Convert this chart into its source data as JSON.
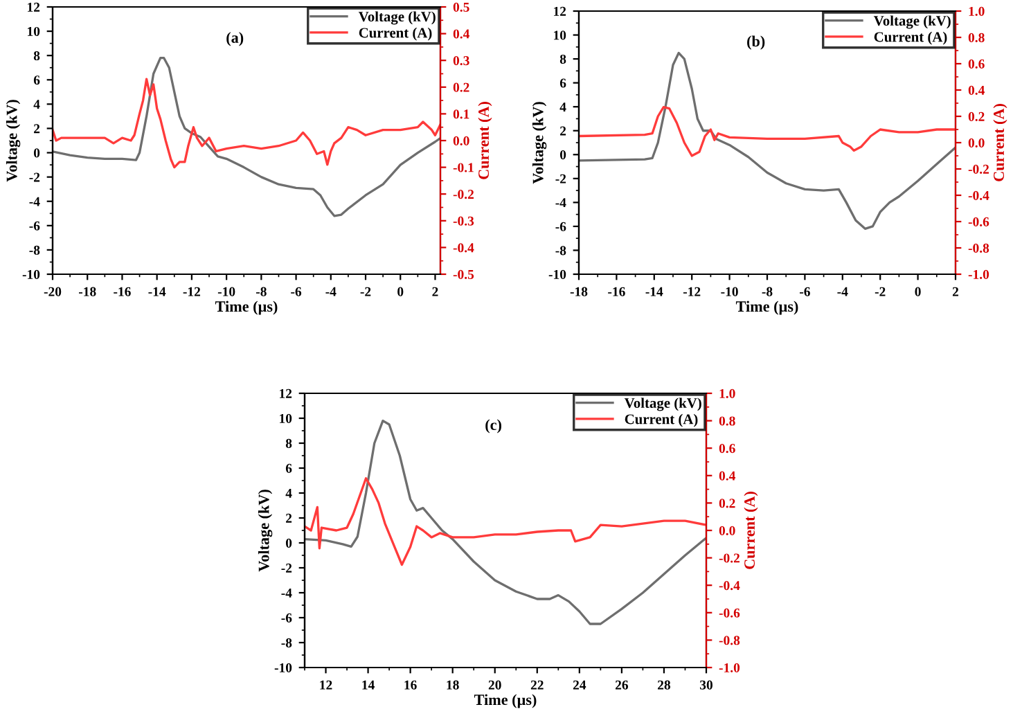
{
  "chart_data": [
    {
      "type": "line",
      "annotations": [
        "(a)"
      ],
      "xlabel": "Time (µs)",
      "ylabel": "Voltage (kV)",
      "y2label": "Current (A)",
      "legend": "top right",
      "grid": false,
      "xlim": [
        -20,
        2.3
      ],
      "xticks": [
        -20,
        -18,
        -16,
        -14,
        -12,
        -10,
        -8,
        -6,
        -4,
        -2,
        0,
        2
      ],
      "ylim": [
        -10,
        12
      ],
      "yticks": [
        -10,
        -8,
        -6,
        -4,
        -2,
        0,
        2,
        4,
        6,
        8,
        10,
        12
      ],
      "y2lim": [
        -0.5,
        0.5
      ],
      "y2ticks": [
        {
          "value": -0.5,
          "label": "-0.5"
        },
        {
          "value": -0.4,
          "label": "-0.4"
        },
        {
          "value": -0.3,
          "label": "-0.3"
        },
        {
          "value": -0.2,
          "label": "-0.2"
        },
        {
          "value": -0.1,
          "label": "-0.1"
        },
        {
          "value": 0,
          "label": "0.0"
        },
        {
          "value": 0.1,
          "label": "0.1"
        },
        {
          "value": 0.2,
          "label": "0.2"
        },
        {
          "value": 0.3,
          "label": "0.3"
        },
        {
          "value": 0.4,
          "label": "0.4"
        },
        {
          "value": 0.5,
          "label": "0.5"
        }
      ],
      "series": [
        {
          "name": "Voltage (kV)",
          "color": "#6e6e6e",
          "axis": "y",
          "x": [
            -20,
            -19,
            -18,
            -17,
            -16,
            -15.2,
            -15,
            -14.6,
            -14.2,
            -13.8,
            -13.6,
            -13.3,
            -13,
            -12.7,
            -12.4,
            -12,
            -11.5,
            -11,
            -10.5,
            -10,
            -9,
            -8,
            -7,
            -6,
            -5,
            -4.6,
            -4.2,
            -3.8,
            -3.4,
            -3,
            -2,
            -1,
            0,
            1,
            2,
            2.3
          ],
          "values": [
            0.1,
            -0.2,
            -0.4,
            -0.5,
            -0.5,
            -0.6,
            0,
            3,
            6.5,
            7.8,
            7.8,
            7,
            5,
            3,
            2,
            1.6,
            1.3,
            0.5,
            -0.3,
            -0.5,
            -1.2,
            -2,
            -2.6,
            -2.9,
            -3,
            -3.5,
            -4.5,
            -5.2,
            -5.1,
            -4.6,
            -3.5,
            -2.6,
            -1,
            0,
            0.9,
            1.2
          ]
        },
        {
          "name": "Current (A)",
          "color": "#ff3b3b",
          "axis": "y2",
          "x": [
            -20,
            -19.8,
            -19.5,
            -18,
            -17,
            -16.5,
            -16,
            -15.5,
            -15.3,
            -15,
            -14.8,
            -14.6,
            -14.4,
            -14.2,
            -14,
            -13.8,
            -13.5,
            -13.2,
            -13,
            -12.7,
            -12.4,
            -12.2,
            -11.9,
            -11.7,
            -11.4,
            -11,
            -10.6,
            -10,
            -9,
            -8,
            -7,
            -6,
            -5.6,
            -5.2,
            -4.8,
            -4.4,
            -4.2,
            -4,
            -3.8,
            -3.4,
            -3,
            -2.5,
            -2,
            -1,
            0,
            1,
            1.3,
            1.8,
            2,
            2.3
          ],
          "values": [
            0.04,
            0,
            0.01,
            0.01,
            0.01,
            -0.01,
            0.01,
            0,
            0.02,
            0.1,
            0.15,
            0.23,
            0.17,
            0.21,
            0.12,
            0.08,
            0,
            -0.07,
            -0.1,
            -0.08,
            -0.08,
            -0.02,
            0.05,
            0.01,
            -0.02,
            0.01,
            -0.04,
            -0.03,
            -0.02,
            -0.03,
            -0.02,
            0.0,
            0.03,
            0.0,
            -0.05,
            -0.04,
            -0.09,
            -0.04,
            -0.01,
            0.01,
            0.05,
            0.04,
            0.02,
            0.04,
            0.04,
            0.05,
            0.07,
            0.04,
            0.02,
            0.06
          ]
        }
      ]
    },
    {
      "type": "line",
      "annotations": [
        "(b)"
      ],
      "xlabel": "Time (µs)",
      "ylabel": "Voltage (kV)",
      "y2label": "Current (A)",
      "legend": "top right",
      "grid": false,
      "xlim": [
        -18,
        2
      ],
      "xticks": [
        -18,
        -16,
        -14,
        -12,
        -10,
        -8,
        -6,
        -4,
        -2,
        0,
        2
      ],
      "ylim": [
        -10,
        12
      ],
      "yticks": [
        -10,
        -8,
        -6,
        -4,
        -2,
        0,
        2,
        4,
        6,
        8,
        10,
        12
      ],
      "y2lim": [
        -1.0,
        1.0
      ],
      "y2ticks": [
        {
          "value": -1,
          "label": "-1.0"
        },
        {
          "value": -0.8,
          "label": "-0.8"
        },
        {
          "value": -0.6,
          "label": "-0.6"
        },
        {
          "value": -0.4,
          "label": "-0.4"
        },
        {
          "value": -0.2,
          "label": "-0.2"
        },
        {
          "value": 0,
          "label": "0.0"
        },
        {
          "value": 0.2,
          "label": "0.2"
        },
        {
          "value": 0.4,
          "label": "0.4"
        },
        {
          "value": 0.6,
          "label": "0.6"
        },
        {
          "value": 0.8,
          "label": "0.8"
        },
        {
          "value": 1,
          "label": "1.0"
        }
      ],
      "series": [
        {
          "name": "Voltage (kV)",
          "color": "#6e6e6e",
          "axis": "y",
          "x": [
            -18,
            -14.5,
            -14.1,
            -13.8,
            -13.4,
            -13,
            -12.7,
            -12.4,
            -12,
            -11.7,
            -11.4,
            -11,
            -10.7,
            -10,
            -9,
            -8,
            -7,
            -6,
            -5,
            -4.2,
            -3.8,
            -3.3,
            -2.8,
            -2.4,
            -2,
            -1.5,
            -1,
            0,
            1,
            2
          ],
          "values": [
            -0.5,
            -0.4,
            -0.3,
            1,
            4,
            7.5,
            8.5,
            8,
            5.5,
            3,
            2,
            2,
            1.3,
            0.8,
            -0.2,
            -1.5,
            -2.4,
            -2.9,
            -3,
            -2.9,
            -4,
            -5.5,
            -6.2,
            -6,
            -4.8,
            -4,
            -3.5,
            -2.2,
            -0.8,
            0.6
          ]
        },
        {
          "name": "Current (A)",
          "color": "#ff3b3b",
          "axis": "y2",
          "x": [
            -18,
            -14.5,
            -14.1,
            -13.8,
            -13.5,
            -13.2,
            -12.8,
            -12.4,
            -12,
            -11.6,
            -11.3,
            -11,
            -10.8,
            -10.6,
            -10,
            -8,
            -6,
            -4.2,
            -4,
            -3.6,
            -3.4,
            -3,
            -2.5,
            -2,
            -1,
            0,
            1,
            2
          ],
          "values": [
            0.05,
            0.06,
            0.07,
            0.2,
            0.27,
            0.26,
            0.15,
            0.0,
            -0.1,
            -0.07,
            0.05,
            0.1,
            0.02,
            0.07,
            0.04,
            0.03,
            0.03,
            0.05,
            0.0,
            -0.03,
            -0.06,
            -0.03,
            0.05,
            0.1,
            0.08,
            0.08,
            0.1,
            0.1
          ]
        }
      ]
    },
    {
      "type": "line",
      "annotations": [
        "(c)"
      ],
      "xlabel": "Time (µs)",
      "ylabel": "Voltage (kV)",
      "y2label": "Current (A)",
      "legend": "top right",
      "grid": false,
      "xlim": [
        11,
        30
      ],
      "xticks": [
        12,
        14,
        16,
        18,
        20,
        22,
        24,
        26,
        28,
        30
      ],
      "ylim": [
        -10,
        12
      ],
      "yticks": [
        -10,
        -8,
        -6,
        -4,
        -2,
        0,
        2,
        4,
        6,
        8,
        10,
        12
      ],
      "y2lim": [
        -1.0,
        1.0
      ],
      "y2ticks": [
        {
          "value": -1,
          "label": "-1.0"
        },
        {
          "value": -0.8,
          "label": "-0.8"
        },
        {
          "value": -0.6,
          "label": "-0.6"
        },
        {
          "value": -0.4,
          "label": "-0.4"
        },
        {
          "value": -0.2,
          "label": "-0.2"
        },
        {
          "value": 0,
          "label": "0.0"
        },
        {
          "value": 0.2,
          "label": "0.2"
        },
        {
          "value": 0.4,
          "label": "0.4"
        },
        {
          "value": 0.6,
          "label": "0.6"
        },
        {
          "value": 0.8,
          "label": "0.8"
        },
        {
          "value": 1,
          "label": "1.0"
        }
      ],
      "series": [
        {
          "name": "Voltage (kV)",
          "color": "#6e6e6e",
          "axis": "y",
          "x": [
            11,
            12,
            12.8,
            13.2,
            13.5,
            13.9,
            14.3,
            14.7,
            15,
            15.5,
            16,
            16.3,
            16.6,
            17,
            17.5,
            18,
            19,
            20,
            21,
            22,
            22.6,
            23,
            23.5,
            24,
            24.5,
            25,
            26,
            27,
            28,
            29,
            30
          ],
          "values": [
            0.3,
            0.2,
            -0.1,
            -0.3,
            0.5,
            4,
            8,
            9.8,
            9.5,
            7,
            3.5,
            2.6,
            2.8,
            2,
            1,
            0.3,
            -1.5,
            -3,
            -3.9,
            -4.5,
            -4.5,
            -4.2,
            -4.7,
            -5.5,
            -6.5,
            -6.5,
            -5.3,
            -4,
            -2.5,
            -1,
            0.4
          ]
        },
        {
          "name": "Current (A)",
          "color": "#ff3b3b",
          "axis": "y2",
          "x": [
            11,
            11.3,
            11.6,
            11.7,
            11.8,
            12.5,
            13,
            13.3,
            13.6,
            13.9,
            14.2,
            14.5,
            14.8,
            15.2,
            15.6,
            16,
            16.3,
            16.6,
            17,
            17.4,
            18,
            19,
            20,
            21,
            22,
            23,
            23.6,
            23.8,
            24.5,
            25,
            26,
            27,
            28,
            29,
            30
          ],
          "values": [
            0.03,
            0,
            0.17,
            -0.13,
            0.02,
            0,
            0.02,
            0.12,
            0.25,
            0.38,
            0.3,
            0.2,
            0.05,
            -0.1,
            -0.25,
            -0.12,
            0.03,
            0,
            -0.05,
            -0.02,
            -0.05,
            -0.05,
            -0.03,
            -0.03,
            -0.01,
            0.0,
            0.0,
            -0.08,
            -0.05,
            0.04,
            0.03,
            0.05,
            0.07,
            0.07,
            0.04
          ]
        }
      ]
    }
  ]
}
